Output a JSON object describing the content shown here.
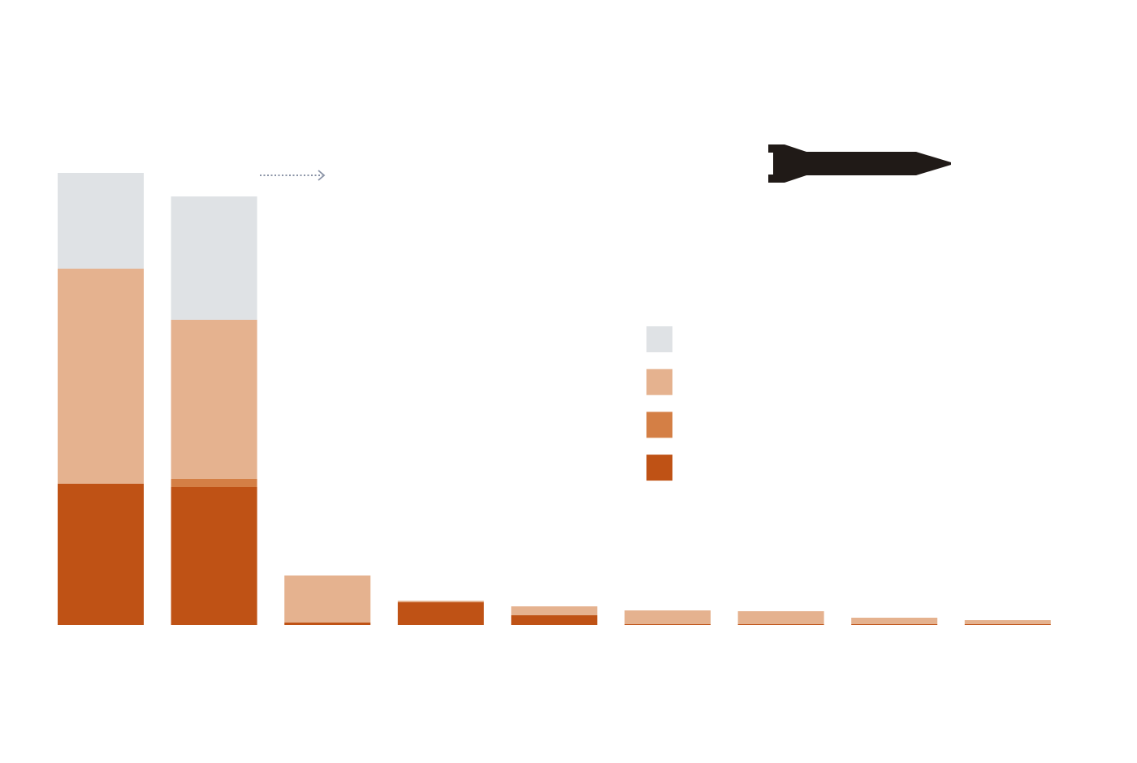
{
  "chart_data": {
    "type": "stacked-bar",
    "categories": [
      null,
      null,
      null,
      null,
      null,
      null,
      null,
      null,
      null
    ],
    "series": [
      {
        "color": "#bf5215",
        "values": [
          174,
          170,
          3,
          28,
          12,
          1,
          1,
          1,
          1
        ]
      },
      {
        "color": "#d47f45",
        "values": [
          0,
          10,
          0,
          0,
          0,
          0,
          0,
          0,
          0
        ]
      },
      {
        "color": "#e5b28f",
        "values": [
          265,
          196,
          58,
          2,
          11,
          17,
          16,
          8,
          5
        ]
      },
      {
        "color": "#dfe2e5",
        "values": [
          118,
          152,
          0,
          0,
          0,
          0,
          0,
          0,
          0
        ]
      }
    ],
    "ylim": [
      0,
      557
    ]
  }
}
